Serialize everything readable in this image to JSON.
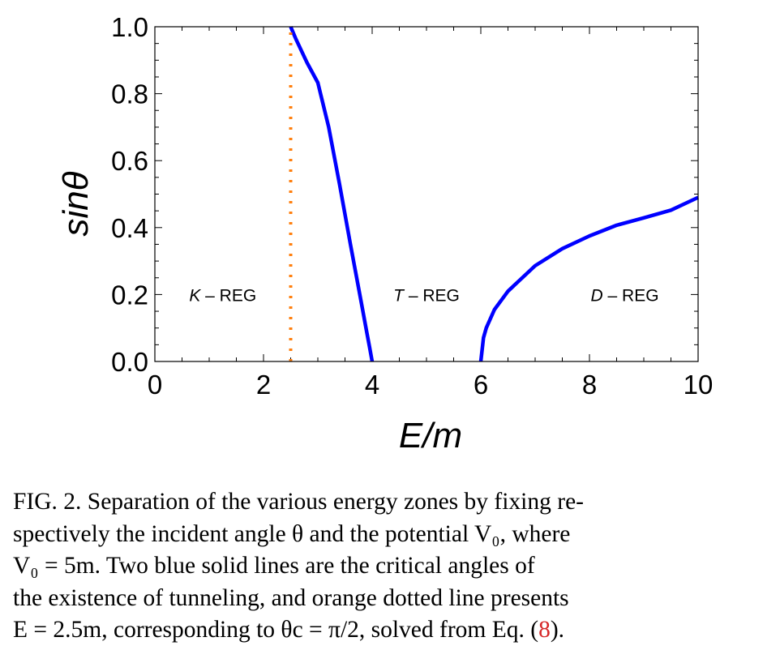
{
  "chart_data": {
    "type": "line",
    "xlabel": "E/m",
    "ylabel": "sinθ",
    "xlim": [
      0,
      10
    ],
    "ylim": [
      0,
      1
    ],
    "x_ticks": [
      "0",
      "2",
      "4",
      "6",
      "8",
      "10"
    ],
    "y_ticks": [
      "0.0",
      "0.2",
      "0.4",
      "0.6",
      "0.8",
      "1.0"
    ],
    "V0": 5,
    "series": [
      {
        "style": "solid",
        "color": "#0000ff",
        "x": [
          2.5,
          2.6,
          2.8,
          3.0,
          3.2,
          3.4,
          3.6,
          3.8,
          3.9,
          3.95,
          4.0
        ],
        "y": [
          1.0,
          0.962,
          0.893,
          0.833,
          0.7,
          0.529,
          0.35,
          0.176,
          0.088,
          0.044,
          0.0
        ]
      },
      {
        "style": "solid",
        "color": "#0000ff",
        "x": [
          6.0,
          6.05,
          6.1,
          6.25,
          6.5,
          7.0,
          7.5,
          8.0,
          8.5,
          9.0,
          9.5,
          10.0
        ],
        "y": [
          0.0,
          0.071,
          0.1,
          0.155,
          0.21,
          0.286,
          0.337,
          0.375,
          0.407,
          0.429,
          0.452,
          0.49
        ]
      },
      {
        "style": "dotted",
        "color": "#ff7f0e",
        "x": [
          2.5,
          2.5
        ],
        "y": [
          0.0,
          1.0
        ]
      }
    ],
    "annotations": [
      {
        "prefix": "K",
        "suffix": " – REG",
        "x": 1.25,
        "y": 0.2
      },
      {
        "prefix": "T",
        "suffix": " – REG",
        "x": 5.0,
        "y": 0.2
      },
      {
        "prefix": "D",
        "suffix": " – REG",
        "x": 8.65,
        "y": 0.2
      }
    ]
  },
  "caption": {
    "line1": "FIG. 2. Separation of the various energy zones by fixing re-",
    "line2": "spectively the incident angle θ and the potential V₀, where",
    "line3": "V₀ = 5m. Two blue solid lines are the critical angles of",
    "line4": "the existence of tunneling, and orange dotted line presents",
    "line5_a": "E = 2.5m, corresponding to θc = π/2, solved from Eq. (",
    "line5_ref": "8",
    "line5_b": ")."
  }
}
